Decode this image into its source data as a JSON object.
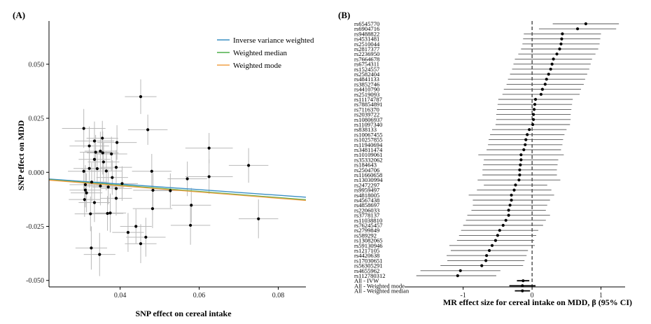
{
  "chart_data": [
    {
      "type": "scatter",
      "panel_label": "(A)",
      "xlabel": "SNP effect on cereal intake",
      "ylabel": "SNP effect on MDD",
      "xlim": [
        0.022,
        0.087
      ],
      "ylim": [
        -0.053,
        0.07
      ],
      "x_ticks": [
        0.04,
        0.06,
        0.08
      ],
      "x_tick_labels": [
        "0.04",
        "0.06",
        "0.08"
      ],
      "y_ticks": [
        -0.05,
        -0.025,
        0.0,
        0.025,
        0.05
      ],
      "y_tick_labels": [
        "-0.050",
        "-0.025",
        "0.000",
        "0.025",
        "0.050"
      ],
      "grid": false,
      "legend_position": "top-right",
      "lines": [
        {
          "name": "Inverse variance weighted",
          "color": "#3a8fc4",
          "y_at_xmin": -0.0031,
          "y_at_xmax": -0.0115
        },
        {
          "name": "Weighted median",
          "color": "#4daf4a",
          "y_at_xmin": -0.0034,
          "y_at_xmax": -0.0127
        },
        {
          "name": "Weighted mode",
          "color": "#f0a046",
          "y_at_xmin": -0.0036,
          "y_at_xmax": -0.013
        }
      ],
      "points": [
        {
          "x": 0.0452,
          "y": 0.035,
          "xe": 0.004,
          "ye": 0.008
        },
        {
          "x": 0.047,
          "y": 0.0197,
          "xe": 0.005,
          "ye": 0.007
        },
        {
          "x": 0.0308,
          "y": 0.0203,
          "xe": 0.0055,
          "ye": 0.009
        },
        {
          "x": 0.0355,
          "y": 0.0158,
          "xe": 0.004,
          "ye": 0.008
        },
        {
          "x": 0.0335,
          "y": 0.0145,
          "xe": 0.005,
          "ye": 0.009
        },
        {
          "x": 0.0392,
          "y": 0.0138,
          "xe": 0.005,
          "ye": 0.008
        },
        {
          "x": 0.0625,
          "y": 0.0112,
          "xe": 0.006,
          "ye": 0.007
        },
        {
          "x": 0.0322,
          "y": 0.0122,
          "xe": 0.005,
          "ye": 0.009
        },
        {
          "x": 0.035,
          "y": 0.0098,
          "xe": 0.004,
          "ye": 0.009
        },
        {
          "x": 0.0338,
          "y": 0.0093,
          "xe": 0.004,
          "ye": 0.008
        },
        {
          "x": 0.0356,
          "y": 0.009,
          "xe": 0.004,
          "ye": 0.01
        },
        {
          "x": 0.0378,
          "y": 0.0085,
          "xe": 0.004,
          "ye": 0.008
        },
        {
          "x": 0.0335,
          "y": 0.006,
          "xe": 0.004,
          "ye": 0.01
        },
        {
          "x": 0.0358,
          "y": 0.0048,
          "xe": 0.004,
          "ye": 0.009
        },
        {
          "x": 0.0725,
          "y": 0.0032,
          "xe": 0.005,
          "ye": 0.008
        },
        {
          "x": 0.039,
          "y": 0.0023,
          "xe": 0.004,
          "ye": 0.008
        },
        {
          "x": 0.0342,
          "y": 0.0017,
          "xe": 0.004,
          "ye": 0.008
        },
        {
          "x": 0.0322,
          "y": 0.0018,
          "xe": 0.004,
          "ye": 0.009
        },
        {
          "x": 0.0308,
          "y": 0.0005,
          "xe": 0.004,
          "ye": 0.009
        },
        {
          "x": 0.048,
          "y": 0.0005,
          "xe": 0.005,
          "ye": 0.008
        },
        {
          "x": 0.0365,
          "y": 0.0006,
          "xe": 0.004,
          "ye": 0.009
        },
        {
          "x": 0.0625,
          "y": -0.002,
          "xe": 0.006,
          "ye": 0.008
        },
        {
          "x": 0.038,
          "y": -0.0024,
          "xe": 0.004,
          "ye": 0.008
        },
        {
          "x": 0.057,
          "y": -0.003,
          "xe": 0.005,
          "ye": 0.008
        },
        {
          "x": 0.0328,
          "y": -0.0045,
          "xe": 0.004,
          "ye": 0.009
        },
        {
          "x": 0.0312,
          "y": -0.0057,
          "xe": 0.004,
          "ye": 0.009
        },
        {
          "x": 0.0405,
          "y": -0.0052,
          "xe": 0.004,
          "ye": 0.008
        },
        {
          "x": 0.035,
          "y": -0.0063,
          "xe": 0.004,
          "ye": 0.009
        },
        {
          "x": 0.037,
          "y": -0.0068,
          "xe": 0.004,
          "ye": 0.008
        },
        {
          "x": 0.039,
          "y": -0.0075,
          "xe": 0.004,
          "ye": 0.009
        },
        {
          "x": 0.0312,
          "y": -0.0082,
          "xe": 0.004,
          "ye": 0.008
        },
        {
          "x": 0.0527,
          "y": -0.0085,
          "xe": 0.005,
          "ye": 0.008
        },
        {
          "x": 0.0483,
          "y": -0.0083,
          "xe": 0.005,
          "ye": 0.008
        },
        {
          "x": 0.0315,
          "y": -0.0095,
          "xe": 0.004,
          "ye": 0.009
        },
        {
          "x": 0.039,
          "y": -0.012,
          "xe": 0.004,
          "ye": 0.008
        },
        {
          "x": 0.031,
          "y": -0.0126,
          "xe": 0.004,
          "ye": 0.008
        },
        {
          "x": 0.0335,
          "y": -0.014,
          "xe": 0.004,
          "ye": 0.009
        },
        {
          "x": 0.058,
          "y": -0.0152,
          "xe": 0.005,
          "ye": 0.008
        },
        {
          "x": 0.0482,
          "y": -0.0168,
          "xe": 0.005,
          "ye": 0.009
        },
        {
          "x": 0.0375,
          "y": -0.0188,
          "xe": 0.004,
          "ye": 0.009
        },
        {
          "x": 0.0368,
          "y": -0.019,
          "xe": 0.004,
          "ye": 0.008
        },
        {
          "x": 0.0325,
          "y": -0.0192,
          "xe": 0.004,
          "ye": 0.008
        },
        {
          "x": 0.075,
          "y": -0.0215,
          "xe": 0.005,
          "ye": 0.009
        },
        {
          "x": 0.0578,
          "y": -0.0245,
          "xe": 0.005,
          "ye": 0.009
        },
        {
          "x": 0.044,
          "y": -0.025,
          "xe": 0.004,
          "ye": 0.008
        },
        {
          "x": 0.042,
          "y": -0.0278,
          "xe": 0.004,
          "ye": 0.009
        },
        {
          "x": 0.0465,
          "y": -0.03,
          "xe": 0.005,
          "ye": 0.009
        },
        {
          "x": 0.0452,
          "y": -0.033,
          "xe": 0.004,
          "ye": 0.009
        },
        {
          "x": 0.0327,
          "y": -0.035,
          "xe": 0.004,
          "ye": 0.01
        },
        {
          "x": 0.0348,
          "y": -0.038,
          "xe": 0.004,
          "ye": 0.01
        }
      ]
    },
    {
      "type": "forest",
      "panel_label": "(B)",
      "xlabel": "MR effect size for cereal intake on MDD, β (95% CI)",
      "xlim": [
        -1.85,
        1.35
      ],
      "x_ticks": [
        -1,
        0,
        1
      ],
      "x_tick_labels": [
        "-1",
        "0",
        "1"
      ],
      "reference_line": 0,
      "rows": [
        {
          "label": "rs6545770",
          "est": 0.78,
          "lo": 0.3,
          "hi": 1.26
        },
        {
          "label": "rs6904716",
          "est": 0.66,
          "lo": 0.1,
          "hi": 1.22
        },
        {
          "label": "rs9488822",
          "est": 0.44,
          "lo": -0.12,
          "hi": 1.0
        },
        {
          "label": "rs4531481",
          "est": 0.43,
          "lo": -0.13,
          "hi": 0.99
        },
        {
          "label": "rs2510044",
          "est": 0.42,
          "lo": -0.14,
          "hi": 0.98
        },
        {
          "label": "rs2817377",
          "est": 0.4,
          "lo": -0.16,
          "hi": 0.96
        },
        {
          "label": "rs2236950",
          "est": 0.36,
          "lo": -0.2,
          "hi": 0.92
        },
        {
          "label": "rs7664678",
          "est": 0.31,
          "lo": -0.25,
          "hi": 0.87
        },
        {
          "label": "rs6754311",
          "est": 0.29,
          "lo": -0.27,
          "hi": 0.85
        },
        {
          "label": "rs1524557",
          "est": 0.27,
          "lo": -0.29,
          "hi": 0.83
        },
        {
          "label": "rs2582404",
          "est": 0.24,
          "lo": -0.32,
          "hi": 0.8
        },
        {
          "label": "rs4841133",
          "est": 0.21,
          "lo": -0.35,
          "hi": 0.77
        },
        {
          "label": "rs3852746",
          "est": 0.19,
          "lo": -0.37,
          "hi": 0.75
        },
        {
          "label": "rs4410790",
          "est": 0.15,
          "lo": -0.41,
          "hi": 0.71
        },
        {
          "label": "rs2519093",
          "est": 0.13,
          "lo": -0.43,
          "hi": 0.69
        },
        {
          "label": "rs11174787",
          "est": 0.05,
          "lo": -0.49,
          "hi": 0.59
        },
        {
          "label": "rs78854891",
          "est": 0.04,
          "lo": -0.5,
          "hi": 0.58
        },
        {
          "label": "rs7116370",
          "est": 0.03,
          "lo": -0.51,
          "hi": 0.57
        },
        {
          "label": "rs2039722",
          "est": 0.02,
          "lo": -0.52,
          "hi": 0.56
        },
        {
          "label": "rs10806937",
          "est": 0.02,
          "lo": -0.52,
          "hi": 0.56
        },
        {
          "label": "rs11097340",
          "est": 0.01,
          "lo": -0.53,
          "hi": 0.55
        },
        {
          "label": "rs838133",
          "est": -0.04,
          "lo": -0.58,
          "hi": 0.5
        },
        {
          "label": "rs10067455",
          "est": -0.07,
          "lo": -0.61,
          "hi": 0.47
        },
        {
          "label": "rs10257855",
          "est": -0.09,
          "lo": -0.63,
          "hi": 0.45
        },
        {
          "label": "rs11940694",
          "est": -0.1,
          "lo": -0.64,
          "hi": 0.44
        },
        {
          "label": "rs34811474",
          "est": -0.12,
          "lo": -0.66,
          "hi": 0.42
        },
        {
          "label": "rs10109061",
          "est": -0.16,
          "lo": -0.78,
          "hi": 0.46
        },
        {
          "label": "rs35332062",
          "est": -0.16,
          "lo": -0.7,
          "hi": 0.38
        },
        {
          "label": "rs184643",
          "est": -0.17,
          "lo": -0.71,
          "hi": 0.37
        },
        {
          "label": "rs2504706",
          "est": -0.18,
          "lo": -0.72,
          "hi": 0.36
        },
        {
          "label": "rs11660658",
          "est": -0.18,
          "lo": -0.72,
          "hi": 0.36
        },
        {
          "label": "rs13030994",
          "est": -0.19,
          "lo": -0.79,
          "hi": 0.41
        },
        {
          "label": "rs2472297",
          "est": -0.24,
          "lo": -0.7,
          "hi": 0.22
        },
        {
          "label": "rs9959497",
          "est": -0.26,
          "lo": -0.8,
          "hi": 0.28
        },
        {
          "label": "rs4818005",
          "est": -0.3,
          "lo": -0.92,
          "hi": 0.32
        },
        {
          "label": "rs4567438",
          "est": -0.3,
          "lo": -0.86,
          "hi": 0.26
        },
        {
          "label": "rs4858697",
          "est": -0.32,
          "lo": -0.86,
          "hi": 0.22
        },
        {
          "label": "rs2206033",
          "est": -0.34,
          "lo": -0.88,
          "hi": 0.2
        },
        {
          "label": "rs3778137",
          "est": -0.34,
          "lo": -0.94,
          "hi": 0.26
        },
        {
          "label": "rs11038810",
          "est": -0.38,
          "lo": -0.96,
          "hi": 0.2
        },
        {
          "label": "rs76245457",
          "est": -0.42,
          "lo": -1.0,
          "hi": 0.16
        },
        {
          "label": "rs2799849",
          "est": -0.47,
          "lo": -1.03,
          "hi": 0.09
        },
        {
          "label": "rs589292",
          "est": -0.5,
          "lo": -1.06,
          "hi": 0.06
        },
        {
          "label": "rs13082065",
          "est": -0.53,
          "lo": -1.09,
          "hi": 0.03
        },
        {
          "label": "rs59130946",
          "est": -0.58,
          "lo": -1.2,
          "hi": 0.04
        },
        {
          "label": "rs1217105",
          "est": -0.62,
          "lo": -1.18,
          "hi": -0.06
        },
        {
          "label": "rs4420638",
          "est": -0.66,
          "lo": -1.24,
          "hi": -0.08
        },
        {
          "label": "rs17030651",
          "est": -0.67,
          "lo": -1.23,
          "hi": -0.11
        },
        {
          "label": "rs56305291",
          "est": -0.73,
          "lo": -1.33,
          "hi": -0.13
        },
        {
          "label": "rs4655962",
          "est": -1.04,
          "lo": -1.62,
          "hi": -0.46
        },
        {
          "label": "rs112780312",
          "est": -1.08,
          "lo": -1.68,
          "hi": -0.52
        }
      ],
      "summary_rows": [
        {
          "label": "All - IVW",
          "est": -0.13,
          "lo": -0.22,
          "hi": -0.04
        },
        {
          "label": "All - Weighted mode",
          "est": -0.14,
          "lo": -0.33,
          "hi": 0.05
        },
        {
          "label": "All - Weighted median",
          "est": -0.14,
          "lo": -0.25,
          "hi": -0.03
        }
      ]
    }
  ]
}
